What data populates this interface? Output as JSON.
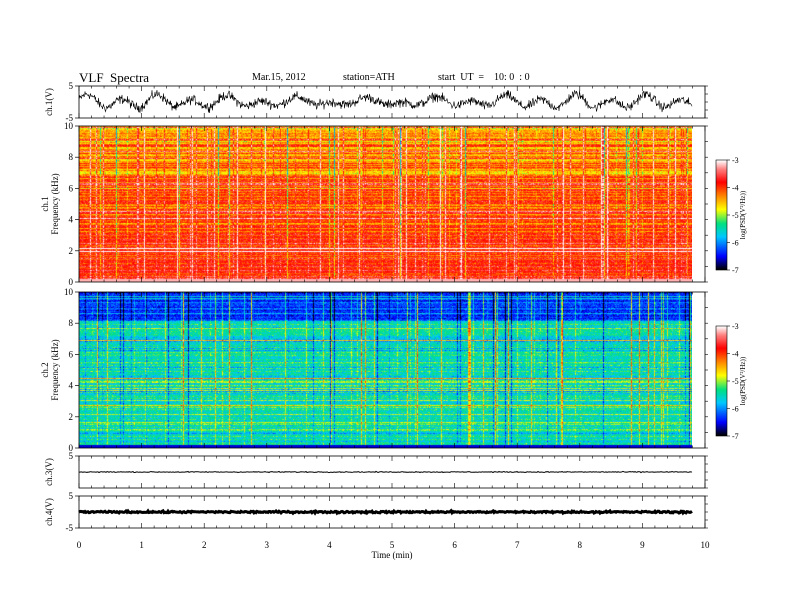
{
  "header": {
    "title": "VLF  Spectra",
    "date": "Mar.15, 2012",
    "station": "station=ATH",
    "start": "start  UT  =    10: 0  : 0"
  },
  "chart_data": {
    "type": "heatmap",
    "xlabel": "Time  (min)",
    "xlim": [
      0,
      10
    ],
    "xticks": [
      "0",
      "1",
      "2",
      "3",
      "4",
      "5",
      "6",
      "7",
      "8",
      "9",
      "10"
    ],
    "data_end_min": 9.8,
    "panels": [
      {
        "kind": "waveform",
        "ylabel": "ch.1(V)",
        "ylim": [
          -5,
          5
        ],
        "yticks": [
          "5",
          "-5"
        ]
      },
      {
        "kind": "spectrogram",
        "channel": "ch.1",
        "ylabel": "Frequency  (kHz)",
        "ylim": [
          0,
          10
        ],
        "yticks": [
          "0",
          "2",
          "4",
          "6",
          "8",
          "10"
        ],
        "typical_log_psd": -4.2
      },
      {
        "kind": "spectrogram",
        "channel": "ch.2",
        "ylabel": "Frequency  (kHz)",
        "ylim": [
          0,
          10
        ],
        "yticks": [
          "0",
          "2",
          "4",
          "6",
          "8",
          "10"
        ],
        "typical_log_psd": -5.5
      },
      {
        "kind": "waveform",
        "ylabel": "ch.3(V)",
        "ylim": [
          -5,
          5
        ],
        "yticks": [
          "5"
        ],
        "level": 0
      },
      {
        "kind": "waveform",
        "ylabel": "ch.4(V)",
        "ylim": [
          -5,
          5
        ],
        "yticks": [
          "5",
          "-5"
        ],
        "level": 0
      }
    ],
    "colorbar": {
      "label": "log(PSD(V²/Hz))",
      "range": [
        -7,
        -3
      ],
      "ticks": [
        "-3",
        "-4",
        "-5",
        "-6",
        "-7"
      ],
      "colors": [
        "#000000",
        "#0000ff",
        "#00c8ff",
        "#00e080",
        "#ffff00",
        "#ff8000",
        "#ff0000",
        "#ff8080",
        "#ffffff"
      ]
    }
  }
}
